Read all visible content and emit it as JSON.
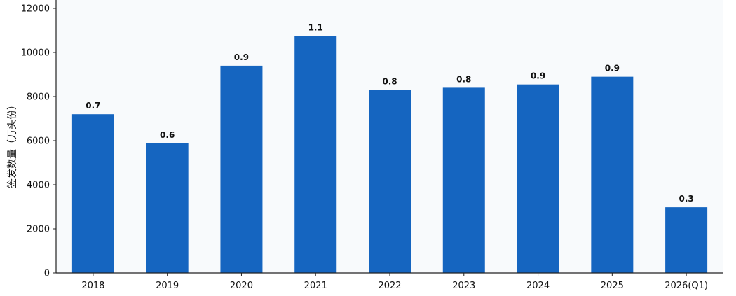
{
  "chart_data": {
    "type": "bar",
    "title": "",
    "xlabel": "",
    "ylabel": "签发数量（万头份）",
    "categories": [
      "2018",
      "2019",
      "2020",
      "2021",
      "2022",
      "2023",
      "2024",
      "2025",
      "2026(Q1)"
    ],
    "values": [
      7200,
      5880,
      9400,
      10750,
      8300,
      8400,
      8550,
      8900,
      2980
    ],
    "data_labels": [
      "0.7",
      "0.6",
      "0.9",
      "1.1",
      "0.8",
      "0.8",
      "0.9",
      "0.9",
      "0.3"
    ],
    "ylim": [
      0,
      12000
    ],
    "yticks": [
      0,
      2000,
      4000,
      6000,
      8000,
      10000,
      12000
    ],
    "grid": false,
    "legend": "none",
    "colors": {
      "bar": "#1565c0",
      "plot_background": "#f8fafc",
      "axis": "#222222"
    }
  }
}
